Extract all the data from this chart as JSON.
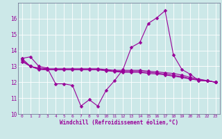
{
  "x": [
    0,
    1,
    2,
    3,
    4,
    5,
    6,
    7,
    8,
    9,
    10,
    11,
    12,
    13,
    14,
    15,
    16,
    17,
    18,
    19,
    20,
    21,
    22,
    23
  ],
  "line_main": [
    13.5,
    13.6,
    13.0,
    12.9,
    11.9,
    11.9,
    11.8,
    10.5,
    10.9,
    10.5,
    11.5,
    12.1,
    12.8,
    14.2,
    14.5,
    15.7,
    16.05,
    16.5,
    13.7,
    12.8,
    12.5,
    12.1,
    12.1,
    12.0
  ],
  "line2": [
    13.5,
    13.0,
    12.9,
    12.85,
    12.85,
    12.85,
    12.85,
    12.85,
    12.85,
    12.85,
    12.8,
    12.75,
    12.75,
    12.75,
    12.75,
    12.7,
    12.65,
    12.6,
    12.55,
    12.45,
    12.3,
    12.2,
    12.1,
    12.0
  ],
  "line3": [
    13.4,
    13.0,
    12.85,
    12.8,
    12.8,
    12.8,
    12.8,
    12.8,
    12.8,
    12.8,
    12.75,
    12.7,
    12.68,
    12.68,
    12.68,
    12.62,
    12.58,
    12.52,
    12.44,
    12.36,
    12.22,
    12.15,
    12.1,
    12.0
  ],
  "line4": [
    13.3,
    13.0,
    12.8,
    12.78,
    12.78,
    12.78,
    12.78,
    12.78,
    12.78,
    12.78,
    12.72,
    12.67,
    12.62,
    12.62,
    12.62,
    12.55,
    12.52,
    12.46,
    12.38,
    12.3,
    12.2,
    12.12,
    12.08,
    12.0
  ],
  "color": "#990099",
  "bg_color": "#cce8e8",
  "ylim": [
    10,
    17
  ],
  "yticks": [
    10,
    11,
    12,
    13,
    14,
    15,
    16
  ],
  "xticks": [
    0,
    1,
    2,
    3,
    4,
    5,
    6,
    7,
    8,
    9,
    10,
    11,
    12,
    13,
    14,
    15,
    16,
    17,
    18,
    19,
    20,
    21,
    22,
    23
  ],
  "xlabel": "Windchill (Refroidissement éolien,°C)",
  "markersize": 2.5,
  "linewidth": 0.8
}
